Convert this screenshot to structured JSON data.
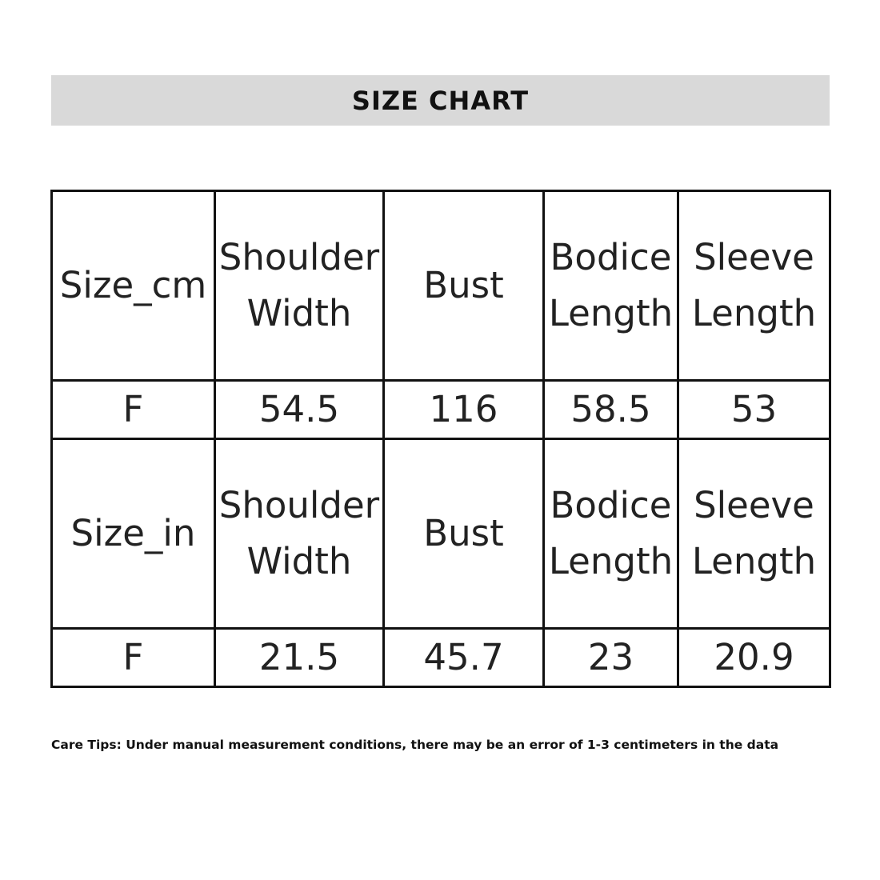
{
  "title": "SIZE CHART",
  "tables": [
    {
      "headers": [
        "Size_cm",
        "Shoulder Width",
        "Bust",
        "Bodice Length",
        "Sleeve Length"
      ],
      "row": [
        "F",
        "54.5",
        "116",
        "58.5",
        "53"
      ]
    },
    {
      "headers": [
        "Size_in",
        "Shoulder Width",
        "Bust",
        "Bodice Length",
        "Sleeve Length"
      ],
      "row": [
        "F",
        "21.5",
        "45.7",
        "23",
        "20.9"
      ]
    }
  ],
  "care_tips": "Care Tips: Under manual measurement conditions, there may be an error of 1-3 centimeters in the data"
}
